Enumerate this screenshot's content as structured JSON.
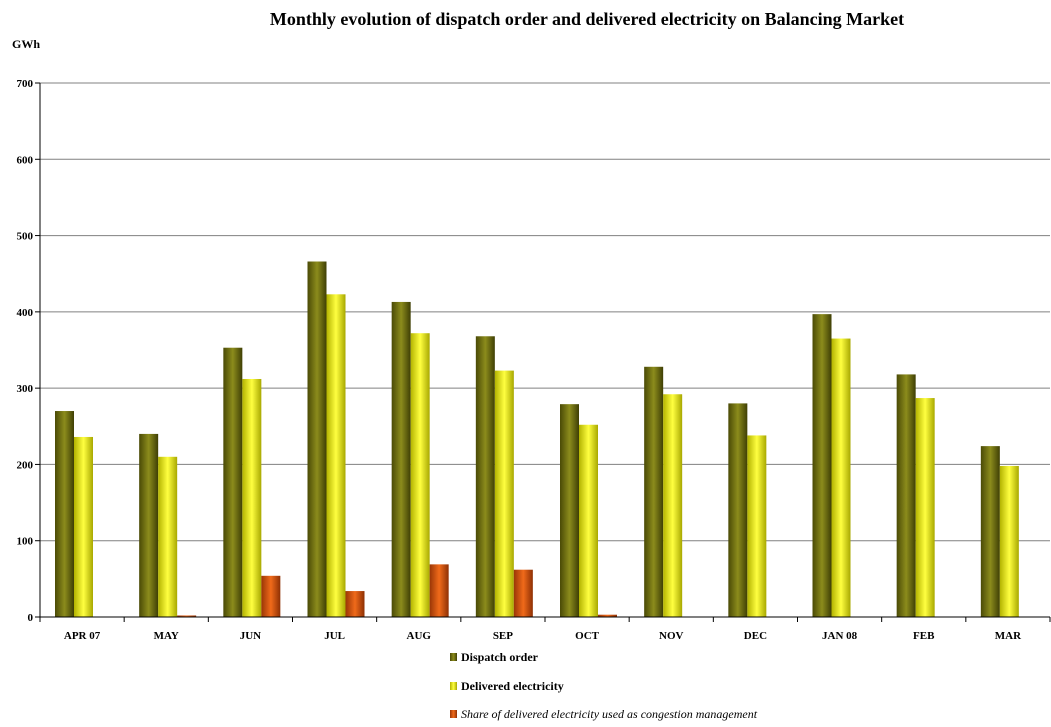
{
  "chart_data": {
    "type": "bar",
    "title": "Monthly evolution of dispatch order and delivered electricity on Balancing Market",
    "ylabel": "GWh",
    "xlabel": "",
    "ylim": [
      0,
      700
    ],
    "yticks": [
      0,
      100,
      200,
      300,
      400,
      500,
      600,
      700
    ],
    "grid": true,
    "legend_position": "bottom",
    "categories": [
      "APR 07",
      "MAY",
      "JUN",
      "JUL",
      "AUG",
      "SEP",
      "OCT",
      "NOV",
      "DEC",
      "JAN 08",
      "FEB",
      "MAR"
    ],
    "series": [
      {
        "name": "Dispatch order",
        "color": "#6b6b10",
        "values": [
          270,
          240,
          353,
          466,
          413,
          368,
          279,
          328,
          280,
          397,
          318,
          224
        ]
      },
      {
        "name": "Delivered electricity",
        "color": "#e6e600",
        "values": [
          236,
          210,
          312,
          423,
          372,
          323,
          252,
          292,
          238,
          365,
          287,
          198
        ]
      },
      {
        "name": "Share of delivered electricity used as congestion management",
        "color": "#d2500a",
        "values": [
          0,
          2,
          54,
          34,
          69,
          62,
          3,
          0,
          0,
          0,
          0,
          0
        ]
      }
    ]
  }
}
